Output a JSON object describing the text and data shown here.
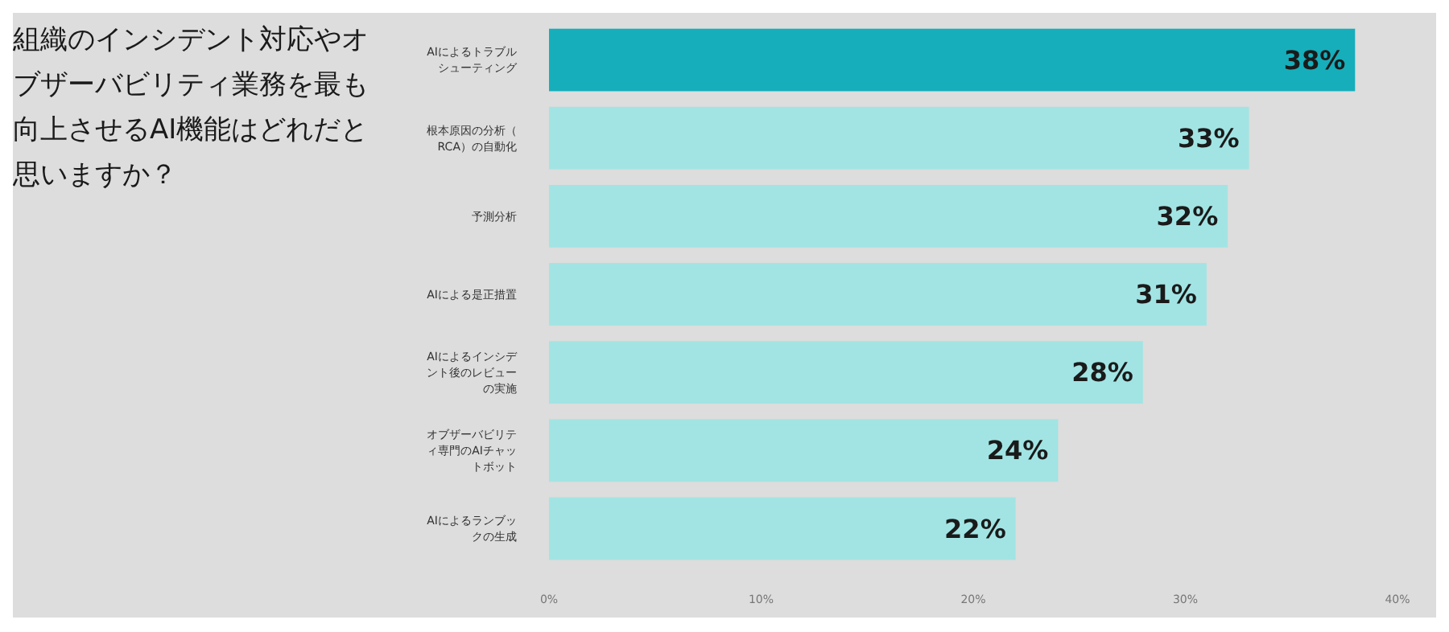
{
  "chart_data": {
    "type": "bar",
    "orientation": "horizontal",
    "title": "組織のインシデント対応やオブザーバビリティ業務を最も向上させるAI機能はどれだと思いますか？",
    "categories": [
      "AIによるトラブルシューティング",
      "根本原因の分析（RCA）の自動化",
      "予測分析",
      "AIによる是正措置",
      "AIによるインシデント後のレビューの実施",
      "オブザーバビリティ専門のAIチャットボット",
      "AIによるランブックの生成"
    ],
    "values": [
      38,
      33,
      32,
      31,
      28,
      24,
      22
    ],
    "colors": [
      "#16aebb",
      "#a2e4e4",
      "#a2e4e4",
      "#a2e4e4",
      "#a2e4e4",
      "#a2e4e4",
      "#a2e4e4"
    ],
    "value_labels": [
      "38%",
      "33%",
      "32%",
      "31%",
      "28%",
      "24%",
      "22%"
    ],
    "xlim": [
      0,
      40
    ],
    "xticks": [
      {
        "value": 0,
        "label": "0%"
      },
      {
        "value": 10,
        "label": "10%"
      },
      {
        "value": 20,
        "label": "20%"
      },
      {
        "value": 30,
        "label": "30%"
      },
      {
        "value": 40,
        "label": "40%"
      }
    ],
    "grid": false
  }
}
